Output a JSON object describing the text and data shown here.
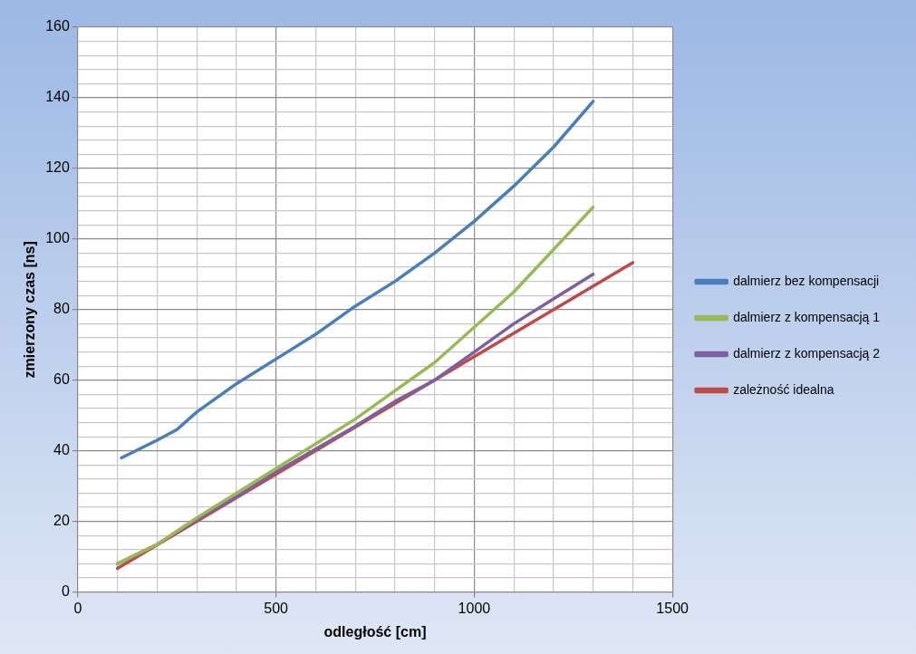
{
  "chart_data": {
    "type": "line",
    "xlabel": "odległość [cm]",
    "ylabel": "zmierzony czas [ns]",
    "xlim": [
      0,
      1500
    ],
    "xticks": [
      0,
      {
        "value": 100,
        "label": null
      },
      {
        "value": 200,
        "label": null
      },
      {
        "value": 300,
        "label": null
      },
      {
        "value": 400,
        "label": null
      },
      500,
      {
        "value": 600,
        "label": null
      },
      {
        "value": 700,
        "label": null
      },
      {
        "value": 800,
        "label": null
      },
      {
        "value": 900,
        "label": null
      },
      1000,
      {
        "value": 1100,
        "label": null
      },
      {
        "value": 1200,
        "label": null
      },
      {
        "value": 1300,
        "label": null
      },
      {
        "value": 1400,
        "label": null
      },
      1500
    ],
    "ylim": [
      0,
      160
    ],
    "yticks": [
      0,
      {
        "value": 4,
        "label": null
      },
      {
        "value": 8,
        "label": null
      },
      {
        "value": 12,
        "label": null
      },
      {
        "value": 16,
        "label": null
      },
      20,
      {
        "value": 24,
        "label": null
      },
      {
        "value": 28,
        "label": null
      },
      {
        "value": 32,
        "label": null
      },
      {
        "value": 36,
        "label": null
      },
      40,
      {
        "value": 44,
        "label": null
      },
      {
        "value": 48,
        "label": null
      },
      {
        "value": 52,
        "label": null
      },
      {
        "value": 56,
        "label": null
      },
      60,
      {
        "value": 64,
        "label": null
      },
      {
        "value": 68,
        "label": null
      },
      {
        "value": 72,
        "label": null
      },
      {
        "value": 76,
        "label": null
      },
      80,
      {
        "value": 84,
        "label": null
      },
      {
        "value": 88,
        "label": null
      },
      {
        "value": 92,
        "label": null
      },
      {
        "value": 96,
        "label": null
      },
      100,
      {
        "value": 104,
        "label": null
      },
      {
        "value": 108,
        "label": null
      },
      {
        "value": 112,
        "label": null
      },
      {
        "value": 116,
        "label": null
      },
      120,
      {
        "value": 124,
        "label": null
      },
      {
        "value": 128,
        "label": null
      },
      {
        "value": 132,
        "label": null
      },
      {
        "value": 136,
        "label": null
      },
      140,
      {
        "value": 144,
        "label": null
      },
      {
        "value": 148,
        "label": null
      },
      {
        "value": 152,
        "label": null
      },
      {
        "value": 156,
        "label": null
      },
      160
    ],
    "grid": true,
    "legend": "right",
    "marker": "none",
    "line_style": "solid",
    "x": [
      100,
      200,
      300,
      400,
      500,
      600,
      700,
      800,
      900,
      1000,
      1100,
      1200,
      1300
    ],
    "series": [
      {
        "name": "dalmierz bez kompensacji",
        "color": "#4a7ebb",
        "x": [
          110,
          200,
          250,
          300,
          400,
          500,
          600,
          700,
          800,
          900,
          1000,
          1100,
          1200,
          1300
        ],
        "values": [
          38,
          43,
          46,
          51,
          59,
          66,
          73,
          81,
          88,
          96,
          105,
          115,
          126,
          139
        ]
      },
      {
        "name": "dalmierz z kompensacją 1",
        "color": "#98b954",
        "values": [
          8,
          13.5,
          21,
          28,
          35,
          42,
          49,
          57,
          65,
          75,
          85,
          97,
          109
        ]
      },
      {
        "name": "dalmierz z kompensacją 2",
        "color": "#7d60a0",
        "values": [
          8,
          13.5,
          20.5,
          27,
          34,
          40.5,
          47,
          54,
          60,
          68,
          76,
          83,
          90
        ]
      },
      {
        "name": "zależność idealna",
        "color": "#be4b48",
        "x": [
          100,
          400,
          700,
          1000,
          1400
        ],
        "values": [
          6.7,
          26.7,
          46.7,
          66.7,
          93.3
        ]
      }
    ]
  }
}
